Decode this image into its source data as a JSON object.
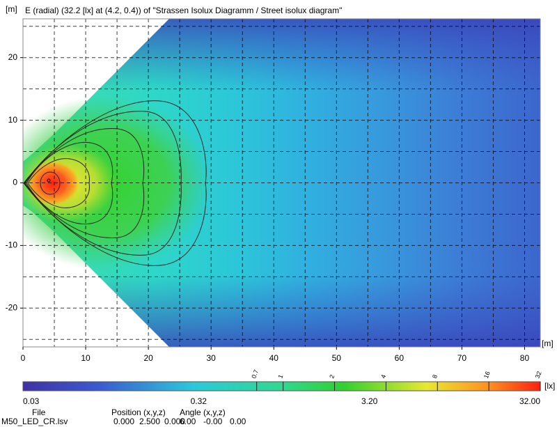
{
  "chart_data": {
    "type": "heatmap",
    "title": "E (radial) (32.2 [lx] at (4.2, 0.4)) of \"Strassen Isolux Diagramm / Street isolux diagram\"",
    "x_label": "[m]",
    "y_label": "[m]",
    "xlim": [
      0,
      82.5
    ],
    "xticks": [
      0,
      10,
      20,
      30,
      40,
      50,
      60,
      70,
      80
    ],
    "ylim": [
      -26.2,
      26.2
    ],
    "yticks": [
      -20,
      -10,
      0,
      10,
      20
    ],
    "grid": true,
    "colorbar": {
      "label": "[lx]",
      "log": true,
      "lim": [
        0.03,
        32
      ],
      "ticks": [
        {
          "value": 0.03,
          "label": "0.03"
        },
        {
          "value": 0.32,
          "label": "0.32"
        },
        {
          "value": 3.2,
          "label": "3.20"
        },
        {
          "value": 32,
          "label": "32.00"
        }
      ],
      "contour_levels": [
        0.7,
        1,
        2,
        4,
        8,
        16,
        32
      ]
    }
  },
  "footer": {
    "file_label": "File",
    "file": "M50_LED_CR.lsv",
    "position_label": "Position (x,y,z)",
    "position": [
      "0.000",
      "2.500",
      "0.000"
    ],
    "angle_label": "Angle (x,y,z)",
    "angle": [
      "6.00",
      "-0.00",
      "0.00"
    ]
  }
}
